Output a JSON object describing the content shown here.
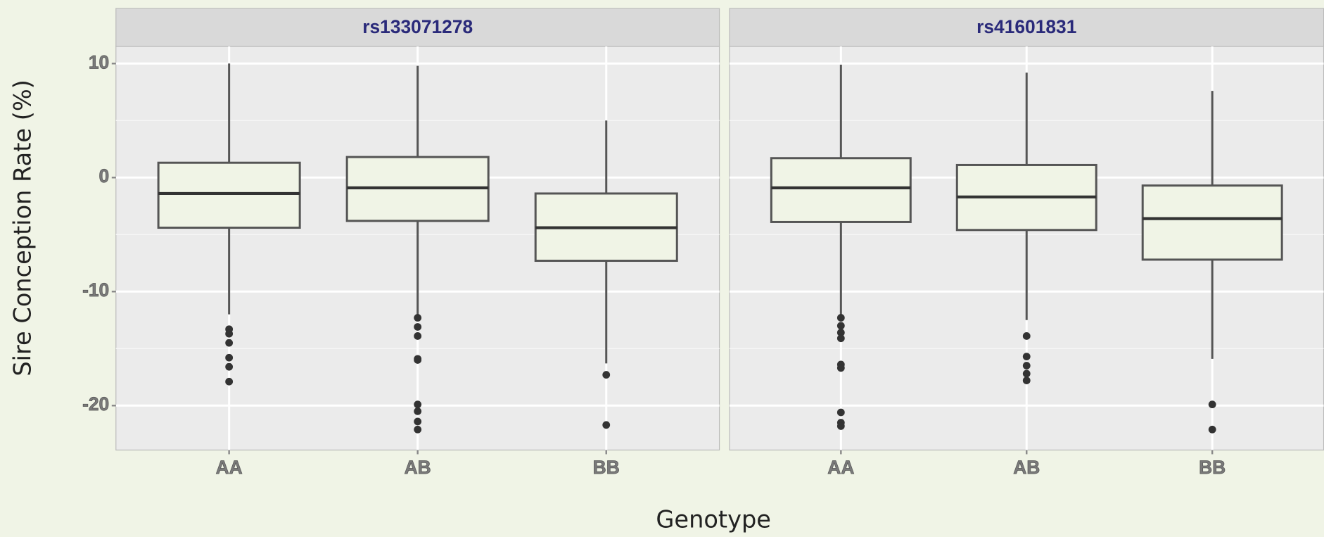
{
  "xlabel": "Genotype",
  "ylabel": "Sire Conception Rate (%)",
  "chart_data": [
    {
      "type": "box",
      "title": "rs133071278",
      "categories": [
        "AA",
        "AB",
        "BB"
      ],
      "boxes": [
        {
          "whisker_high": 10,
          "q3": 1.3,
          "median": -1.4,
          "q1": -4.4,
          "whisker_low": -12,
          "outliers": [
            -13.3,
            -13.7,
            -14.5,
            -15.8,
            -16.6,
            -17.9
          ]
        },
        {
          "whisker_high": 9.8,
          "q3": 1.8,
          "median": -0.9,
          "q1": -3.8,
          "whisker_low": -12,
          "outliers": [
            -12.3,
            -13.1,
            -13.9,
            -15.9,
            -16,
            -19.9,
            -20.5,
            -21.4,
            -22.1
          ]
        },
        {
          "whisker_high": 5,
          "q3": -1.4,
          "median": -4.4,
          "q1": -7.3,
          "whisker_low": -16.3,
          "outliers": [
            -17.3,
            -21.7
          ]
        }
      ],
      "color": "#f0f4e6",
      "ylim": [
        -23.9,
        11.5
      ],
      "yticks": [
        10,
        0,
        -10,
        -20
      ],
      "minor_yticks": [
        5,
        -5,
        -15
      ],
      "grid": true
    },
    {
      "type": "box",
      "title": "rs41601831",
      "categories": [
        "AA",
        "AB",
        "BB"
      ],
      "boxes": [
        {
          "whisker_high": 9.9,
          "q3": 1.7,
          "median": -0.9,
          "q1": -3.9,
          "whisker_low": -12,
          "outliers": [
            -12.3,
            -13,
            -13.6,
            -14.1,
            -16.4,
            -16.7,
            -20.6,
            -21.5,
            -21.8
          ]
        },
        {
          "whisker_high": 9.2,
          "q3": 1.1,
          "median": -1.7,
          "q1": -4.6,
          "whisker_low": -12.5,
          "outliers": [
            -13.9,
            -15.7,
            -16.5,
            -17.2,
            -17.8
          ]
        },
        {
          "whisker_high": 7.6,
          "q3": -0.7,
          "median": -3.6,
          "q1": -7.2,
          "whisker_low": -15.9,
          "outliers": [
            -19.9,
            -22.1
          ]
        }
      ],
      "color": "#f0f4e6",
      "ylim": [
        -23.9,
        11.5
      ],
      "yticks": [
        10,
        0,
        -10,
        -20
      ],
      "minor_yticks": [
        5,
        -5,
        -15
      ],
      "grid": true
    }
  ]
}
